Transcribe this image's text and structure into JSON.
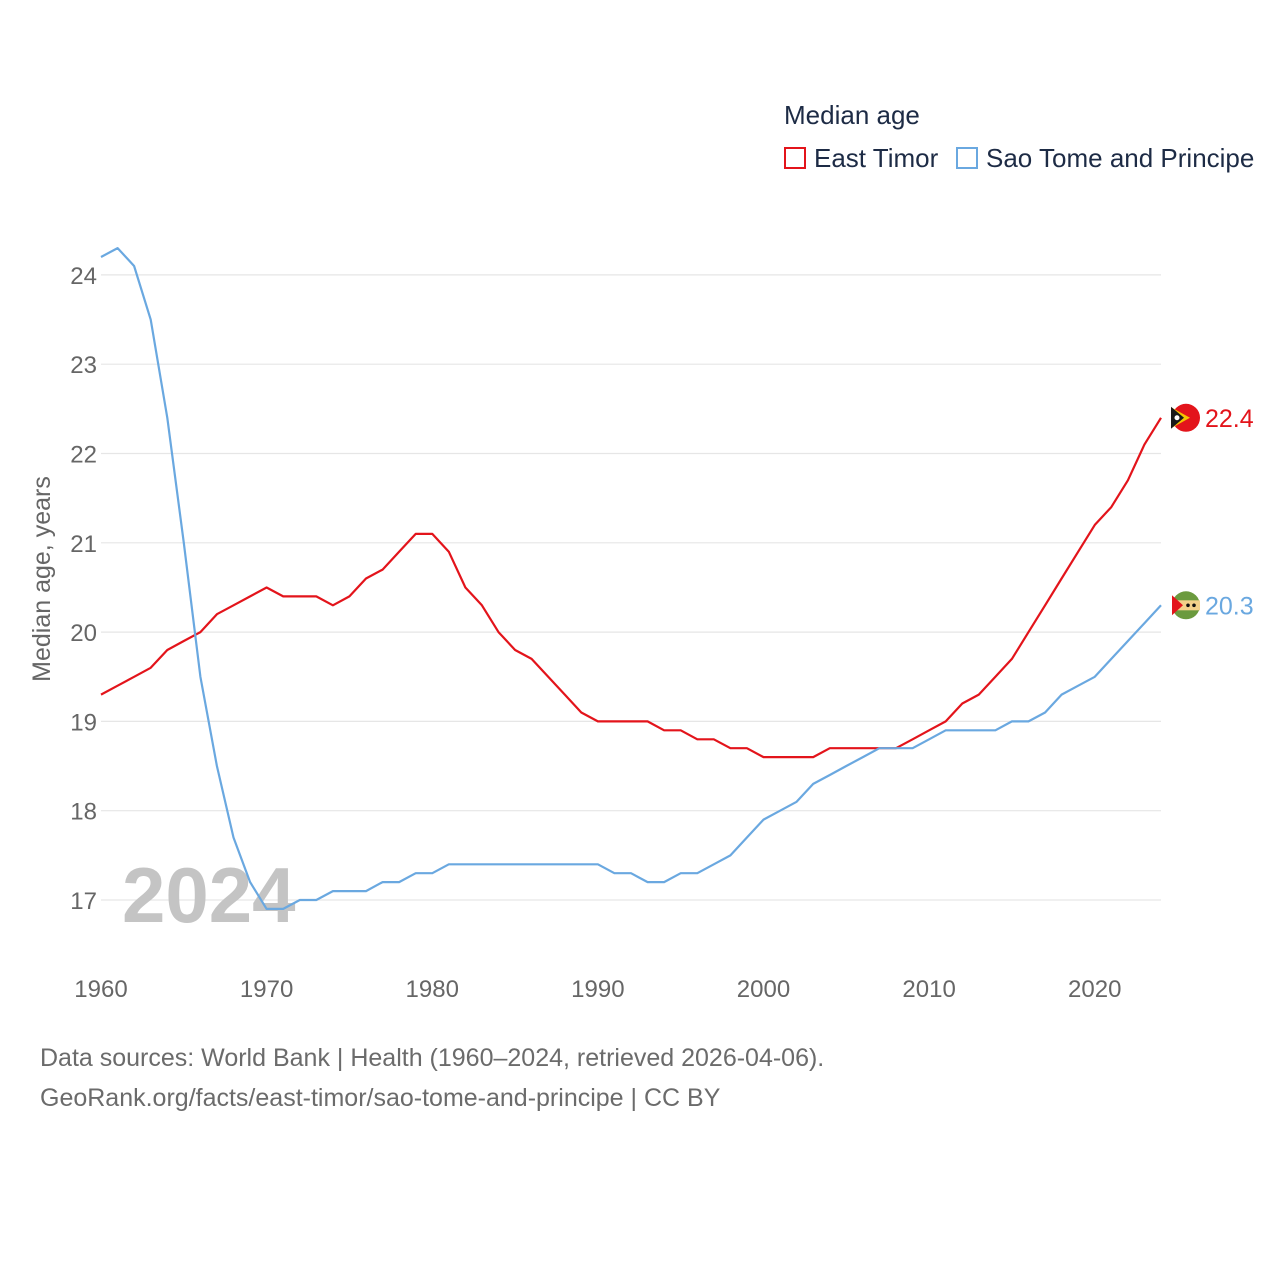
{
  "legend": {
    "title": "Median age",
    "items": [
      {
        "name": "East Timor",
        "color": "#e3141b"
      },
      {
        "name": "Sao Tome and Principe",
        "color": "#6aa8e0"
      }
    ]
  },
  "year_watermark": "2024",
  "footer": {
    "line1": "Data sources: World Bank | Health (1960–2024, retrieved 2026-04-06).",
    "line2": "GeoRank.org/facts/east-timor/sao-tome-and-principe | CC BY"
  },
  "chart_data": {
    "type": "line",
    "title": "Median age",
    "xlabel": "",
    "ylabel": "Median age, years",
    "xlim": [
      1960,
      2024
    ],
    "ylim": [
      16.5,
      24.5
    ],
    "x_ticks": [
      1960,
      1970,
      1980,
      1990,
      2000,
      2010,
      2020
    ],
    "y_ticks": [
      17,
      18,
      19,
      20,
      21,
      22,
      23,
      24
    ],
    "grid": true,
    "legend_position": "top-right",
    "x_start": 1960,
    "series": [
      {
        "name": "East Timor",
        "color": "#e3141b",
        "end_label": "22.4",
        "values": [
          19.3,
          19.4,
          19.5,
          19.6,
          19.8,
          19.9,
          20.0,
          20.2,
          20.3,
          20.4,
          20.5,
          20.4,
          20.4,
          20.4,
          20.3,
          20.4,
          20.6,
          20.7,
          20.9,
          21.1,
          21.1,
          20.9,
          20.5,
          20.3,
          20.0,
          19.8,
          19.7,
          19.5,
          19.3,
          19.1,
          19.0,
          19.0,
          19.0,
          19.0,
          18.9,
          18.9,
          18.8,
          18.8,
          18.7,
          18.7,
          18.6,
          18.6,
          18.6,
          18.6,
          18.7,
          18.7,
          18.7,
          18.7,
          18.7,
          18.8,
          18.9,
          19.0,
          19.2,
          19.3,
          19.5,
          19.7,
          20.0,
          20.3,
          20.6,
          20.9,
          21.2,
          21.4,
          21.7,
          22.1,
          22.4
        ]
      },
      {
        "name": "Sao Tome and Principe",
        "color": "#6aa8e0",
        "end_label": "20.3",
        "values": [
          24.2,
          24.3,
          24.1,
          23.5,
          22.4,
          21.0,
          19.5,
          18.5,
          17.7,
          17.2,
          16.9,
          16.9,
          17.0,
          17.0,
          17.1,
          17.1,
          17.1,
          17.2,
          17.2,
          17.3,
          17.3,
          17.4,
          17.4,
          17.4,
          17.4,
          17.4,
          17.4,
          17.4,
          17.4,
          17.4,
          17.4,
          17.3,
          17.3,
          17.2,
          17.2,
          17.3,
          17.3,
          17.4,
          17.5,
          17.7,
          17.9,
          18.0,
          18.1,
          18.3,
          18.4,
          18.5,
          18.6,
          18.7,
          18.7,
          18.7,
          18.8,
          18.9,
          18.9,
          18.9,
          18.9,
          19.0,
          19.0,
          19.1,
          19.3,
          19.4,
          19.5,
          19.7,
          19.9,
          20.1,
          20.3
        ]
      }
    ]
  }
}
